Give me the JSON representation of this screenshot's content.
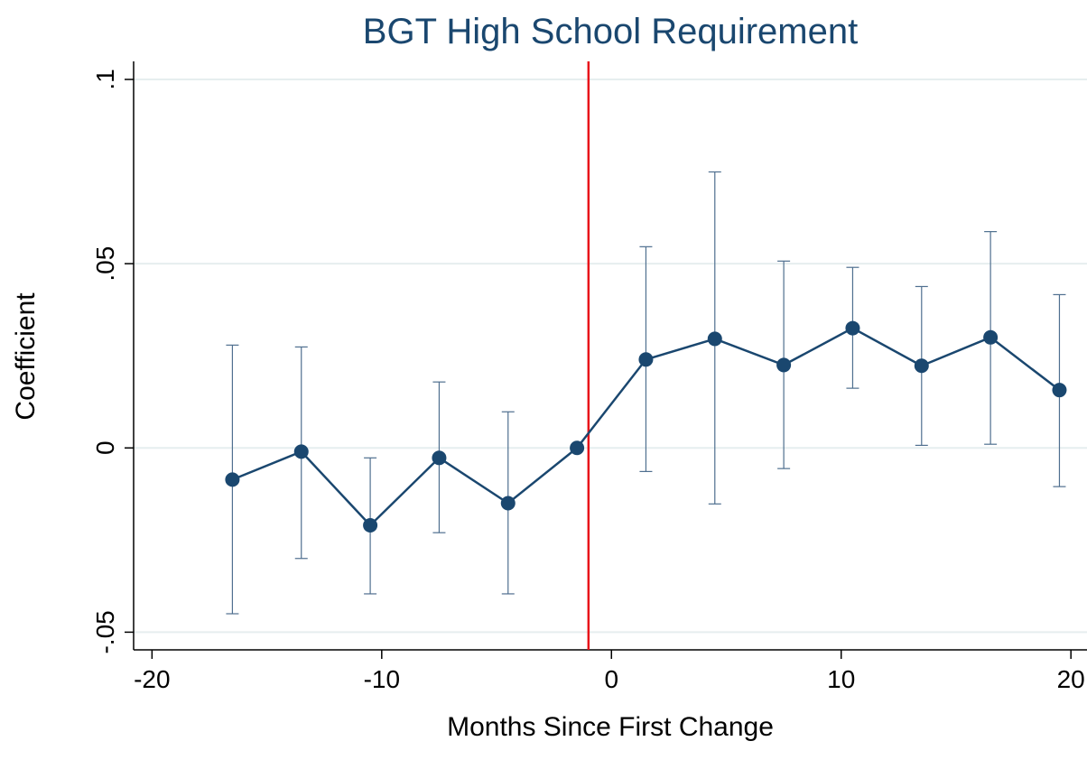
{
  "chart_data": {
    "type": "line",
    "title": "BGT High School Requirement",
    "x_label": "Months Since First Change",
    "y_label": "Coefficient",
    "x": [
      -16.5,
      -13.5,
      -10.5,
      -7.5,
      -4.5,
      -1.5,
      1.5,
      4.5,
      7.5,
      10.5,
      13.5,
      16.5,
      19.5
    ],
    "values": [
      -0.0086,
      -0.001,
      -0.021,
      -0.0027,
      -0.015,
      0,
      0.024,
      0.0296,
      0.0225,
      0.0325,
      0.0223,
      0.03,
      0.0157
    ],
    "upper": [
      0.0279,
      0.0274,
      -0.0027,
      0.0179,
      0.0098,
      null,
      0.0546,
      0.0749,
      0.0507,
      0.049,
      0.0438,
      0.0587,
      0.0416
    ],
    "lower": [
      -0.045,
      -0.03,
      -0.0396,
      -0.023,
      -0.0396,
      null,
      -0.0064,
      -0.0152,
      -0.0056,
      0.0162,
      0.0007,
      0.001,
      -0.0105
    ],
    "color": "#1a476f",
    "ci_color": "#4f6f8f",
    "vline": {
      "x": -1,
      "color": "#e8141a"
    },
    "xlim": [
      -20.8,
      20.7
    ],
    "ylim": [
      -0.0548,
      0.1049
    ],
    "xticks": [
      -20,
      -10,
      0,
      10,
      20
    ],
    "yticks": [
      {
        "value": -0.05,
        "label": "-.05"
      },
      0,
      {
        "value": 0.05,
        "label": ".05"
      },
      {
        "value": 0.1,
        "label": ".1"
      }
    ],
    "grid": true,
    "grid_color": "#e6eeef"
  }
}
